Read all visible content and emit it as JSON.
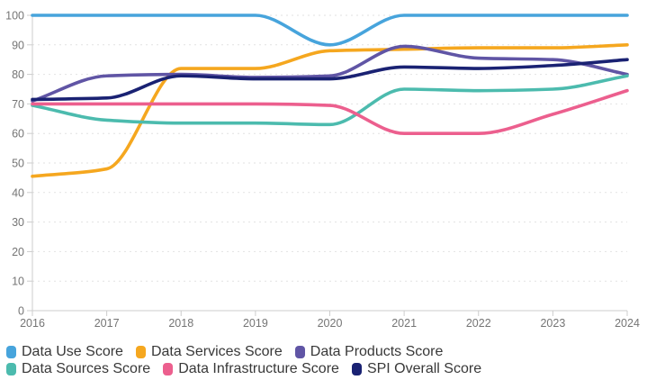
{
  "chart_data": {
    "type": "line",
    "title": "",
    "xlabel": "",
    "ylabel": "",
    "x": [
      2016,
      2017,
      2018,
      2019,
      2020,
      2021,
      2022,
      2023,
      2024
    ],
    "ylim": [
      0,
      100
    ],
    "ytick_step": 10,
    "grid": true,
    "legend_position": "bottom-left",
    "series": [
      {
        "name": "Data Use Score",
        "color": "#47A4DC",
        "values": [
          100,
          100,
          100,
          100,
          90,
          100,
          100,
          100,
          100
        ]
      },
      {
        "name": "Data Services Score",
        "color": "#F5A71F",
        "values": [
          45.5,
          48,
          82,
          82,
          88,
          88.5,
          89,
          89,
          90
        ]
      },
      {
        "name": "Data Products Score",
        "color": "#6055A5",
        "values": [
          71,
          79.5,
          80,
          79,
          79.5,
          89.5,
          85.5,
          85,
          80
        ]
      },
      {
        "name": "Data Sources Score",
        "color": "#4CBBAE",
        "values": [
          69.5,
          64.5,
          63.5,
          63.5,
          63,
          75,
          74.5,
          75,
          79.5
        ]
      },
      {
        "name": "Data Infrastructure Score",
        "color": "#EC5F8E",
        "values": [
          70,
          70,
          70,
          70,
          69.5,
          60,
          60,
          66.5,
          74.5
        ]
      },
      {
        "name": "SPI Overall Score",
        "color": "#1A2273",
        "values": [
          71.5,
          72,
          79.5,
          78.5,
          78.5,
          82.5,
          82,
          83,
          85
        ]
      }
    ],
    "colors": {
      "axis_text": "#757575",
      "grid": "#e2e2e2",
      "axis_line": "#cccccc",
      "legend_text": "#383838",
      "background": "#ffffff"
    }
  }
}
